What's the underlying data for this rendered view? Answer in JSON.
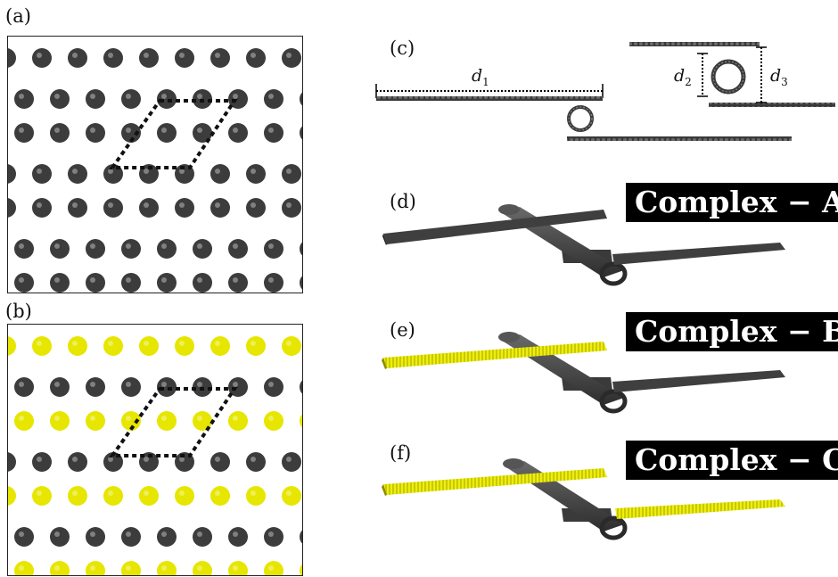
{
  "panel_labels": {
    "a": "(a)",
    "b": "(b)",
    "c": "(c)",
    "d": "(d)",
    "e": "(e)",
    "f": "(f)"
  },
  "distance_labels": {
    "d1_symbol": "d",
    "d1_index": "1",
    "d2_symbol": "d",
    "d2_index": "2",
    "d3_symbol": "d",
    "d3_index": "3"
  },
  "complex_labels": {
    "A": "Complex − A",
    "B": "Complex − B",
    "C": "Complex − C"
  },
  "colors": {
    "carbon": "#3c3c3c",
    "bond": "#555555",
    "yellow_atom": "#e6e600",
    "label_box": "#000000"
  }
}
